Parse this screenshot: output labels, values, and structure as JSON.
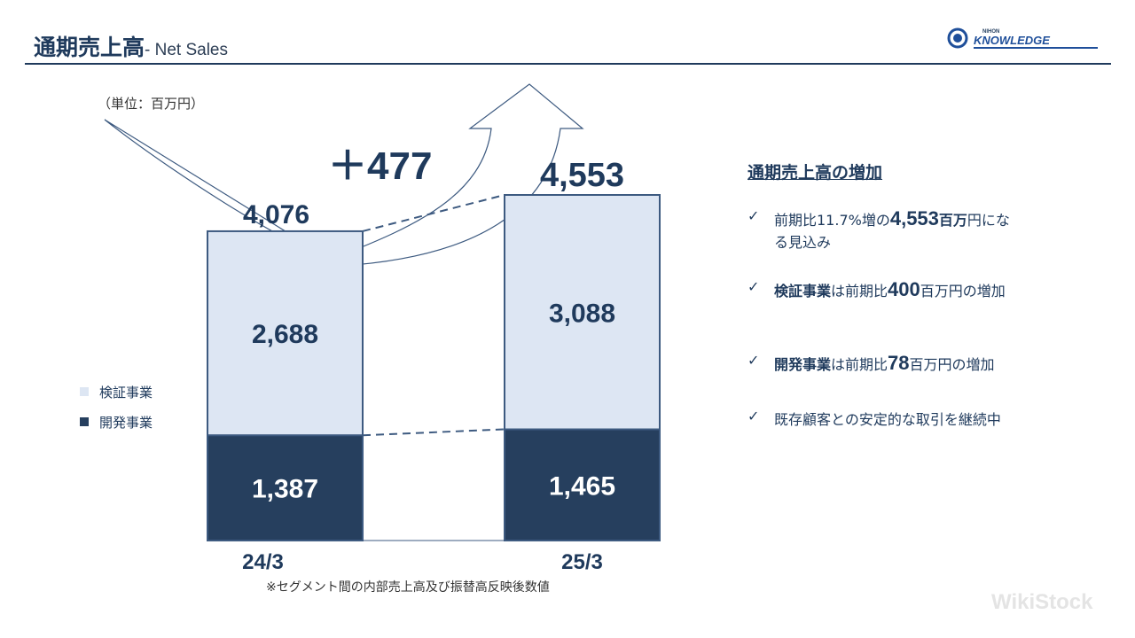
{
  "header": {
    "title": "通期売上高",
    "subtitle": "- Net Sales",
    "logo_top": "NIHON",
    "logo_main": "KNOWLEDGE"
  },
  "unit_label": "（単位：百万円）",
  "legend": [
    {
      "label": "検証事業",
      "color": "#dde6f3"
    },
    {
      "label": "開発事業",
      "color": "#263f5e"
    }
  ],
  "increase_label": "＋477",
  "footnote": "※セグメント間の内部売上高及び振替高反映後数値",
  "summary": {
    "heading": "通期売上高の増加",
    "bullet1": {
      "pre": "前期比11.7%増の",
      "value": "4,553",
      "unit": "百万",
      "post": "円にな",
      "line2": "る見込み"
    },
    "bullet2": {
      "segment": "検証事業",
      "pre": "は前期比",
      "value": "400",
      "post": "百万円の増加"
    },
    "bullet3": {
      "segment": "開発事業",
      "pre": "は前期比",
      "value": "78",
      "post": "百万円の増加"
    },
    "bullet4": {
      "text": "既存顧客との安定的な取引を継続中"
    }
  },
  "watermark": "WikiStock",
  "colors": {
    "navy": "#263f5e",
    "light": "#dde6f3",
    "text": "#1f3a5c"
  },
  "chart_data": {
    "type": "bar",
    "stacked": true,
    "categories": [
      "24/3",
      "25/3"
    ],
    "series": [
      {
        "name": "開発事業",
        "values": [
          1387,
          1465
        ],
        "labels": [
          "1,387",
          "1,465"
        ]
      },
      {
        "name": "検証事業",
        "values": [
          2688,
          3088
        ],
        "labels": [
          "2,688",
          "3,088"
        ]
      }
    ],
    "totals": [
      4076,
      4553
    ],
    "total_labels": [
      "4,076",
      "4,553"
    ],
    "ylim": [
      0,
      4553
    ]
  }
}
